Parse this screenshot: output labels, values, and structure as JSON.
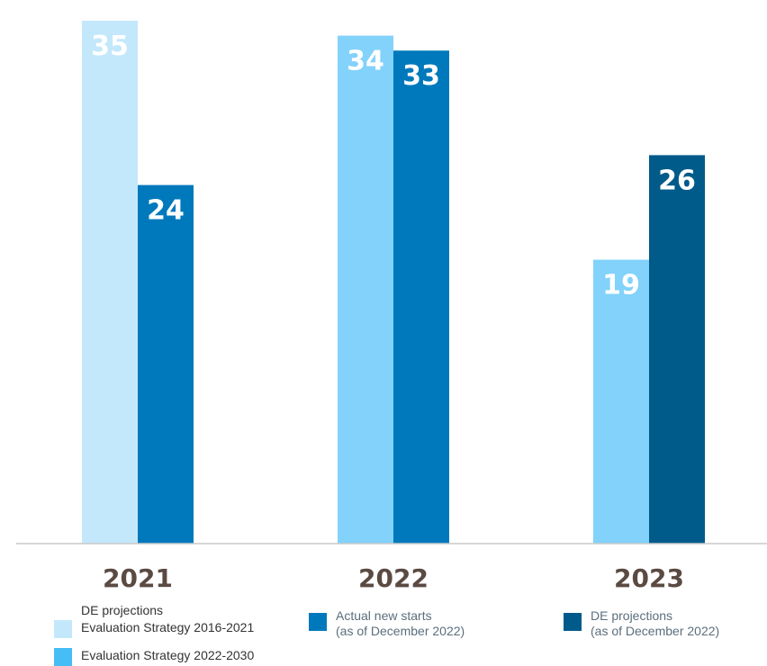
{
  "chart_data": {
    "type": "bar",
    "categories": [
      "2021",
      "2022",
      "2023"
    ],
    "series": [
      {
        "name": "Evaluation Strategy 2016-2021",
        "values": [
          35,
          null,
          null
        ],
        "color": "#c4e8fb"
      },
      {
        "name": "Evaluation Strategy 2022-2030",
        "values": [
          null,
          34,
          19
        ],
        "color": "#82d2fb"
      },
      {
        "name": "Actual new starts (as of December 2022)",
        "values": [
          24,
          33,
          null
        ],
        "color": "#0079bc"
      },
      {
        "name": "DE projections (as of December 2022)",
        "values": [
          null,
          null,
          26
        ],
        "color": "#005b8a"
      }
    ],
    "ylim": [
      0,
      35
    ],
    "grid": false,
    "legend_position": "bottom"
  },
  "legend": {
    "group_title": "DE projections",
    "item1": "Evaluation Strategy 2016-2021",
    "item2": "Evaluation Strategy 2022-2030",
    "item3_line1": "Actual new starts",
    "item3_line2": "(as of December 2022)",
    "item4_line1": "DE projections",
    "item4_line2": "(as of December 2022)"
  },
  "colors": {
    "axis": "#c9c9c9",
    "category_label": "#5a4a42"
  }
}
